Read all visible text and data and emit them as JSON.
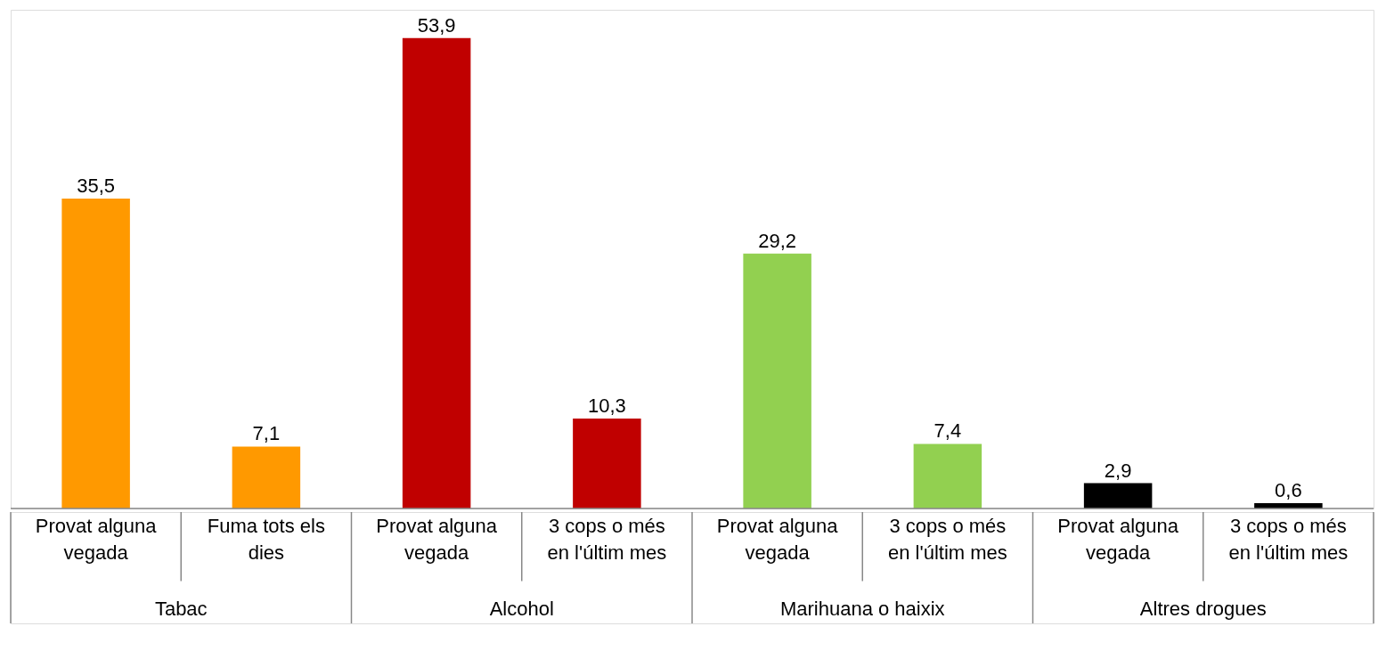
{
  "chart_data": {
    "type": "bar",
    "categories": [
      "Provat alguna vegada",
      "Fuma tots els dies",
      "Provat alguna vegada",
      "3 cops o més en l'últim mes",
      "Provat alguna vegada",
      "3 cops o més en l'últim mes",
      "Provat alguna vegada",
      "3 cops o més en l'últim mes"
    ],
    "values": [
      35.5,
      7.1,
      53.9,
      10.3,
      29.2,
      7.4,
      2.9,
      0.6
    ],
    "value_labels": [
      "35,5",
      "7,1",
      "53,9",
      "10,3",
      "29,2",
      "7,4",
      "2,9",
      "0,6"
    ],
    "colors": [
      "#ff9900",
      "#ff9900",
      "#c00000",
      "#c00000",
      "#92d050",
      "#92d050",
      "#000000",
      "#000000"
    ],
    "annotations": [
      "Tabac",
      "Alcohol",
      "Marihuana o haixix",
      "Altres drogues"
    ]
  }
}
